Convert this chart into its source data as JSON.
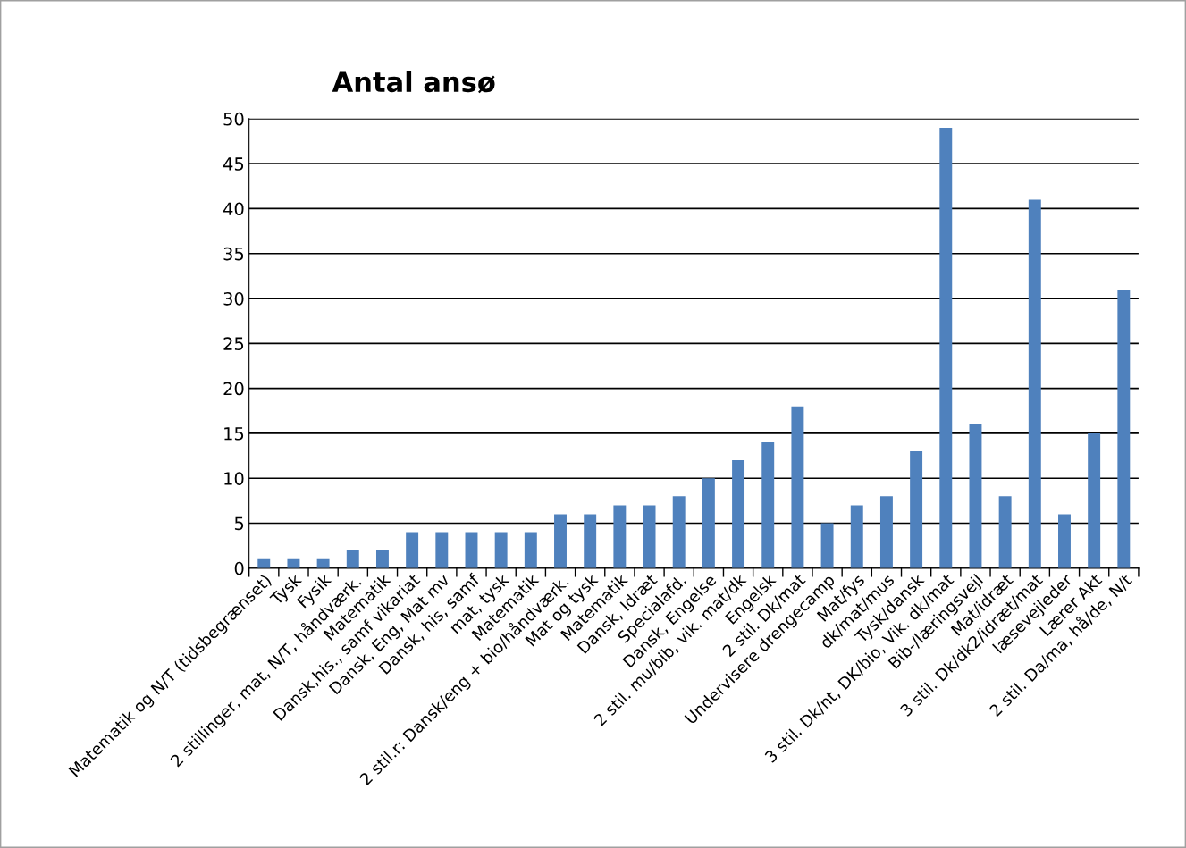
{
  "chart_data": {
    "type": "bar",
    "title": "Antal ansø",
    "categories": [
      "Matematik og N/T (tidsbegrænset)",
      "Tysk",
      "Fysik",
      "2 stillinger, mat, N/T, håndværk.",
      "Matematik",
      "Dansk,his., samf vikariat",
      "Dansk, Eng, Mat mv",
      "Dansk, his, samf",
      "mat, tysk",
      "Matematik",
      "2 stil.r: Dansk/eng + bio/håndværk.",
      "Mat og tysk",
      "Matematik",
      "Dansk, Idræt",
      "Specialafd.",
      "Dansk, Engelse",
      "2 stil. mu/bib, vik. mat/dk",
      "Engelsk",
      "2 stil. Dk/mat",
      "Undervisere drengecamp",
      "Mat/fys",
      "dk/mat/mus",
      "Tysk/dansk",
      "3 stil. Dk/nt, DK/bio, Vik. dk/mat",
      "Bib-/læringsvejl",
      "Mat/idræt",
      "3 stil. Dk/dk2/idræt/mat",
      "læsevejleder",
      "Lærer Akt",
      "2 stil. Da/ma, hå/de, N/t"
    ],
    "values": [
      1,
      1,
      1,
      2,
      2,
      4,
      4,
      4,
      4,
      4,
      6,
      6,
      7,
      7,
      8,
      10,
      12,
      14,
      18,
      5,
      7,
      8,
      13,
      49,
      16,
      8,
      41,
      6,
      15,
      31
    ],
    "color": "#4f81bd",
    "ylim": [
      0,
      50
    ],
    "yticks": [
      0,
      5,
      10,
      15,
      20,
      25,
      30,
      35,
      40,
      45,
      50
    ],
    "grid": "y"
  }
}
